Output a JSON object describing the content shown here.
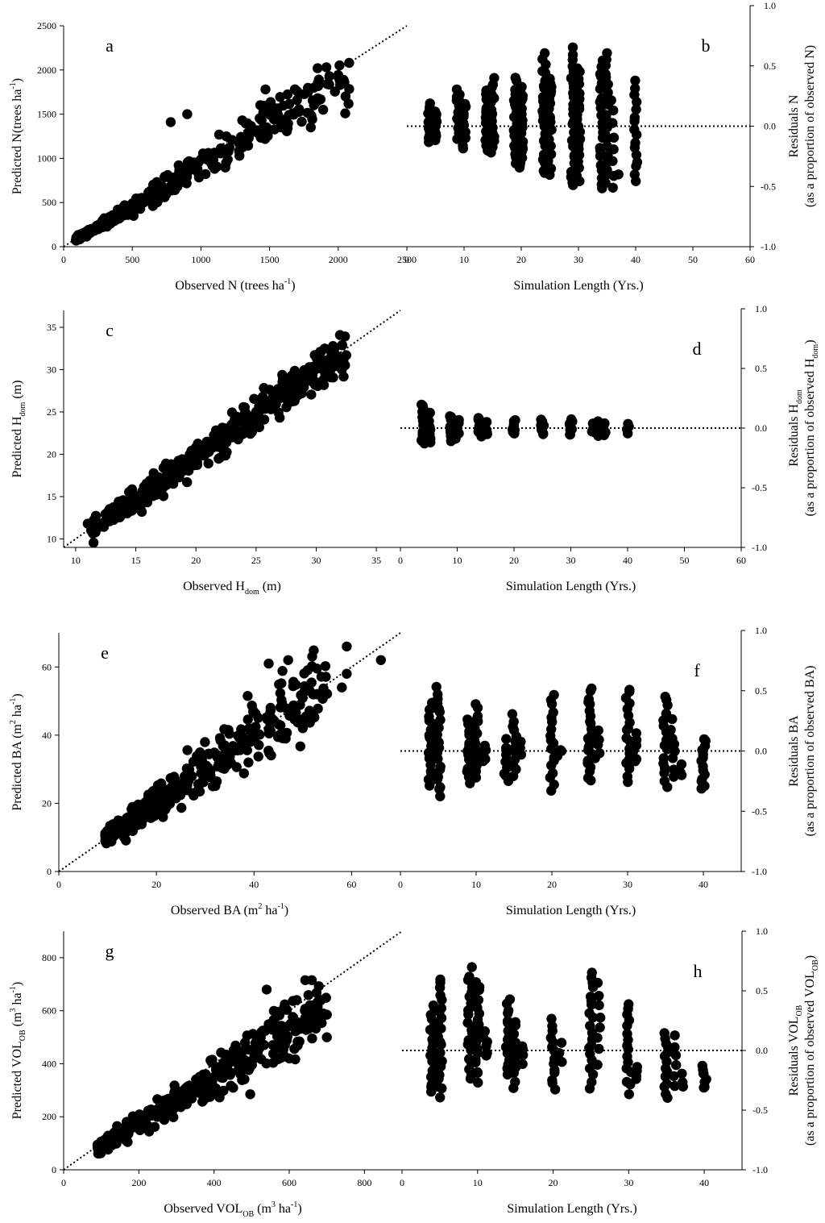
{
  "figure": {
    "background": "#ffffff",
    "marker_color": "#000000"
  },
  "chart_data": [
    {
      "panel": "a",
      "type": "scatter",
      "xlabel_parts": [
        {
          "t": "Observed N (trees ha"
        },
        {
          "t": "-1",
          "s": "sup"
        },
        {
          "t": ")"
        }
      ],
      "ylabel_parts": [
        {
          "t": "Predicted N(trees ha"
        },
        {
          "t": "-1",
          "s": "sup"
        },
        {
          "t": ")"
        }
      ],
      "xlim": [
        0,
        2500
      ],
      "ylim": [
        0,
        2500
      ],
      "xticks": [
        "0",
        "500",
        "1000",
        "1500",
        "2000",
        "2500"
      ],
      "yticks": [
        "0",
        "500",
        "1000",
        "1500",
        "2000",
        "2500"
      ],
      "refline": {
        "from": [
          0,
          0
        ],
        "to": [
          2500,
          2500
        ]
      },
      "gen": {
        "kind": "pred",
        "n": 380,
        "xmin": 90,
        "xmax": 2080,
        "slope": 0.92,
        "spread": 0.1,
        "shape": 1.8,
        "seed": 11
      },
      "points": [
        [
          1920,
          1840
        ],
        [
          1850,
          2020
        ],
        [
          1700,
          1760
        ],
        [
          1470,
          1780
        ],
        [
          2080,
          2080
        ],
        [
          900,
          1500
        ],
        [
          780,
          1410
        ]
      ]
    },
    {
      "panel": "b",
      "type": "scatter",
      "yaxis_side": "right",
      "xlabel_parts": [
        {
          "t": "Simulation Length (Yrs.)"
        }
      ],
      "ylabel_parts": [
        {
          "t": "Residuals N"
        }
      ],
      "ylabel2_parts": [
        {
          "t": "(as a proportion of observed N)"
        }
      ],
      "xlim": [
        0,
        60
      ],
      "ylim": [
        -1.0,
        1.0
      ],
      "xticks": [
        "0",
        "10",
        "20",
        "30",
        "40",
        "50",
        "60"
      ],
      "yticks": [
        "-1.0",
        "-0.5",
        "0.0",
        "0.5",
        "1.0"
      ],
      "refline": {
        "from": [
          0,
          0
        ],
        "to": [
          60,
          0
        ]
      },
      "gen": {
        "kind": "cols",
        "seed": 21,
        "cols": [
          [
            4,
            -0.12,
            0.18,
            14
          ],
          [
            5,
            -0.1,
            0.14,
            10
          ],
          [
            9,
            -0.12,
            0.3,
            18
          ],
          [
            10,
            -0.18,
            0.2,
            12
          ],
          [
            14,
            -0.2,
            0.3,
            16
          ],
          [
            15,
            -0.22,
            0.4,
            16
          ],
          [
            19,
            -0.32,
            0.4,
            18
          ],
          [
            20,
            -0.35,
            0.32,
            22
          ],
          [
            24,
            -0.4,
            0.6,
            24
          ],
          [
            25,
            -0.4,
            0.4,
            22
          ],
          [
            29,
            -0.5,
            0.64,
            26
          ],
          [
            30,
            -0.45,
            0.5,
            22
          ],
          [
            34,
            -0.52,
            0.55,
            22
          ],
          [
            35,
            -0.46,
            0.62,
            20
          ],
          [
            36,
            -0.5,
            0.22,
            8
          ],
          [
            40,
            -0.45,
            0.36,
            16
          ]
        ]
      },
      "points": [
        [
          37,
          -0.4
        ]
      ]
    },
    {
      "panel": "c",
      "type": "scatter",
      "xlabel_parts": [
        {
          "t": "Observed H"
        },
        {
          "t": "dom",
          "s": "sub"
        },
        {
          "t": " (m)"
        }
      ],
      "ylabel_parts": [
        {
          "t": "Predicted H"
        },
        {
          "t": "dom",
          "s": "sub"
        },
        {
          "t": " (m)"
        }
      ],
      "xlim": [
        9,
        37
      ],
      "ylim": [
        9,
        37
      ],
      "xticks": [
        "10",
        "15",
        "20",
        "25",
        "30",
        "35"
      ],
      "yticks": [
        "10",
        "15",
        "20",
        "25",
        "30",
        "35"
      ],
      "refline": {
        "from": [
          9,
          9
        ],
        "to": [
          37,
          37
        ]
      },
      "gen": {
        "kind": "pred",
        "n": 420,
        "xmin": 11.2,
        "xmax": 32.5,
        "slope": 0.985,
        "spread": 0.045,
        "shape": 1.0,
        "seed": 31
      },
      "points": [
        [
          11,
          11.8
        ],
        [
          32.5,
          31.7
        ],
        [
          15.5,
          13.2
        ]
      ]
    },
    {
      "panel": "d",
      "type": "scatter",
      "yaxis_side": "right",
      "xlabel_parts": [
        {
          "t": "Simulation Length (Yrs.)"
        }
      ],
      "ylabel_parts": [
        {
          "t": "Residuals H"
        },
        {
          "t": "dom",
          "s": "sub"
        }
      ],
      "ylabel2_parts": [
        {
          "t": "(as a proportion of observed H"
        },
        {
          "t": "dom",
          "s": "sub"
        },
        {
          "t": ")"
        }
      ],
      "xlim": [
        0,
        60
      ],
      "ylim": [
        -1.0,
        1.0
      ],
      "xticks": [
        "0",
        "10",
        "20",
        "30",
        "40",
        "50",
        "60"
      ],
      "yticks": [
        "-1.0",
        "-0.5",
        "0.0",
        "0.5",
        "1.0"
      ],
      "refline": {
        "from": [
          0,
          0
        ],
        "to": [
          60,
          0
        ]
      },
      "gen": {
        "kind": "cols",
        "seed": 41,
        "cols": [
          [
            4,
            -0.13,
            0.2,
            26
          ],
          [
            5,
            -0.12,
            0.12,
            20
          ],
          [
            9,
            -0.1,
            0.1,
            18
          ],
          [
            10,
            -0.08,
            0.08,
            14
          ],
          [
            14,
            -0.06,
            0.08,
            14
          ],
          [
            15,
            -0.06,
            0.06,
            10
          ],
          [
            20,
            -0.05,
            0.05,
            10
          ],
          [
            25,
            -0.05,
            0.07,
            10
          ],
          [
            30,
            -0.05,
            0.06,
            10
          ],
          [
            34,
            -0.04,
            0.04,
            6
          ],
          [
            35,
            -0.05,
            0.05,
            8
          ],
          [
            36,
            -0.06,
            0.02,
            6
          ],
          [
            40,
            -0.03,
            0.02,
            4
          ]
        ]
      },
      "points": []
    },
    {
      "panel": "e",
      "type": "scatter",
      "xlabel_parts": [
        {
          "t": "Observed BA (m"
        },
        {
          "t": "2",
          "s": "sup"
        },
        {
          "t": " ha"
        },
        {
          "t": "-1",
          "s": "sup"
        },
        {
          "t": ")"
        }
      ],
      "ylabel_parts": [
        {
          "t": "Predicted BA (m"
        },
        {
          "t": "2",
          "s": "sup"
        },
        {
          "t": " ha"
        },
        {
          "t": "-1",
          "s": "sup"
        },
        {
          "t": ")"
        }
      ],
      "xlim": [
        0,
        70
      ],
      "ylim": [
        0,
        70
      ],
      "xticks": [
        "0",
        "20",
        "40",
        "60"
      ],
      "yticks": [
        "0",
        "20",
        "40",
        "60"
      ],
      "refline": {
        "from": [
          0,
          0
        ],
        "to": [
          70,
          70
        ]
      },
      "gen": {
        "kind": "pred",
        "n": 400,
        "xmin": 9.5,
        "xmax": 55,
        "slope": 1.02,
        "spread": 0.11,
        "shape": 1.6,
        "seed": 51
      },
      "points": [
        [
          59,
          66
        ],
        [
          66,
          62
        ],
        [
          59,
          58
        ],
        [
          47,
          62
        ],
        [
          43,
          61
        ],
        [
          58,
          54
        ],
        [
          52,
          46
        ]
      ]
    },
    {
      "panel": "f",
      "type": "scatter",
      "yaxis_side": "right",
      "xlabel_parts": [
        {
          "t": "Simulation Length (Yrs.)"
        }
      ],
      "ylabel_parts": [
        {
          "t": "Residuals BA"
        }
      ],
      "ylabel2_parts": [
        {
          "t": "(as a proportion of observed BA)"
        }
      ],
      "xlim": [
        0,
        45
      ],
      "ylim": [
        -1.0,
        1.0
      ],
      "xticks": [
        "0",
        "10",
        "20",
        "30",
        "40"
      ],
      "yticks": [
        "-1.0",
        "-0.5",
        "0.0",
        "0.5",
        "1.0"
      ],
      "refline": {
        "from": [
          0,
          0
        ],
        "to": [
          45,
          0
        ]
      },
      "gen": {
        "kind": "cols",
        "seed": 61,
        "cols": [
          [
            4,
            -0.3,
            0.4,
            20
          ],
          [
            5,
            -0.37,
            0.52,
            22
          ],
          [
            9,
            -0.25,
            0.25,
            16
          ],
          [
            10,
            -0.22,
            0.38,
            18
          ],
          [
            11,
            -0.1,
            0.05,
            6
          ],
          [
            14,
            -0.25,
            0.08,
            10
          ],
          [
            15,
            -0.2,
            0.3,
            12
          ],
          [
            16,
            -0.05,
            0.06,
            4
          ],
          [
            20,
            -0.32,
            0.47,
            18
          ],
          [
            21,
            -0.05,
            0.02,
            3
          ],
          [
            25,
            -0.25,
            0.52,
            22
          ],
          [
            26,
            -0.05,
            0.18,
            6
          ],
          [
            30,
            -0.25,
            0.52,
            18
          ],
          [
            31,
            -0.1,
            0.15,
            6
          ],
          [
            35,
            -0.3,
            0.47,
            16
          ],
          [
            36,
            -0.2,
            0.25,
            8
          ],
          [
            37,
            -0.22,
            -0.1,
            3
          ],
          [
            40,
            -0.33,
            0.1,
            14
          ]
        ]
      },
      "points": []
    },
    {
      "panel": "g",
      "type": "scatter",
      "xlabel_parts": [
        {
          "t": "Observed VOL"
        },
        {
          "t": "OB",
          "s": "sub"
        },
        {
          "t": " (m"
        },
        {
          "t": "3",
          "s": "sup"
        },
        {
          "t": " ha"
        },
        {
          "t": "-1",
          "s": "sup"
        },
        {
          "t": ")"
        }
      ],
      "ylabel_parts": [
        {
          "t": "Predicted VOL"
        },
        {
          "t": "OB",
          "s": "sub"
        },
        {
          "t": " (m"
        },
        {
          "t": "3",
          "s": "sup"
        },
        {
          "t": " ha"
        },
        {
          "t": "-1",
          "s": "sup"
        },
        {
          "t": ")"
        }
      ],
      "xlim": [
        0,
        900
      ],
      "ylim": [
        0,
        900
      ],
      "xticks": [
        "0",
        "200",
        "400",
        "600",
        "800"
      ],
      "yticks": [
        "0",
        "200",
        "400",
        "600",
        "800"
      ],
      "refline": {
        "from": [
          0,
          0
        ],
        "to": [
          900,
          900
        ]
      },
      "gen": {
        "kind": "pred",
        "n": 420,
        "xmin": 90,
        "xmax": 700,
        "slope": 0.88,
        "spread": 0.11,
        "shape": 1.5,
        "seed": 71
      },
      "points": [
        [
          660,
          715
        ],
        [
          540,
          680
        ],
        [
          620,
          640
        ],
        [
          700,
          585
        ],
        [
          700,
          500
        ],
        [
          600,
          420
        ]
      ]
    },
    {
      "panel": "h",
      "type": "scatter",
      "yaxis_side": "right",
      "xlabel_parts": [
        {
          "t": "Simulation Length (Yrs.)"
        }
      ],
      "ylabel_parts": [
        {
          "t": "Residuals VOL"
        },
        {
          "t": "OB",
          "s": "sub"
        }
      ],
      "ylabel2_parts": [
        {
          "t": "(as a proportion of observed VOL"
        },
        {
          "t": "OB",
          "s": "sub"
        },
        {
          "t": ")"
        }
      ],
      "xlim": [
        0,
        45
      ],
      "ylim": [
        -1.0,
        1.0
      ],
      "xticks": [
        "0",
        "10",
        "20",
        "30",
        "40"
      ],
      "yticks": [
        "-1.0",
        "-0.5",
        "0.0",
        "0.5",
        "1.0"
      ],
      "refline": {
        "from": [
          0,
          0
        ],
        "to": [
          45,
          0
        ]
      },
      "gen": {
        "kind": "cols",
        "seed": 81,
        "cols": [
          [
            4,
            -0.35,
            0.38,
            20
          ],
          [
            5,
            -0.38,
            0.6,
            22
          ],
          [
            9,
            -0.25,
            0.68,
            20
          ],
          [
            10,
            -0.25,
            0.58,
            20
          ],
          [
            11,
            -0.05,
            0.15,
            6
          ],
          [
            14,
            -0.2,
            0.42,
            16
          ],
          [
            15,
            -0.3,
            0.25,
            12
          ],
          [
            16,
            -0.1,
            0.05,
            4
          ],
          [
            20,
            -0.32,
            0.25,
            14
          ],
          [
            21,
            -0.1,
            0.05,
            3
          ],
          [
            25,
            -0.3,
            0.67,
            20
          ],
          [
            26,
            -0.1,
            0.57,
            8
          ],
          [
            30,
            -0.35,
            0.4,
            16
          ],
          [
            31,
            -0.25,
            -0.15,
            4
          ],
          [
            35,
            -0.4,
            0.15,
            14
          ],
          [
            36,
            -0.3,
            0.12,
            6
          ],
          [
            37,
            -0.3,
            -0.2,
            3
          ],
          [
            40,
            -0.32,
            -0.12,
            8
          ]
        ]
      },
      "points": []
    }
  ]
}
